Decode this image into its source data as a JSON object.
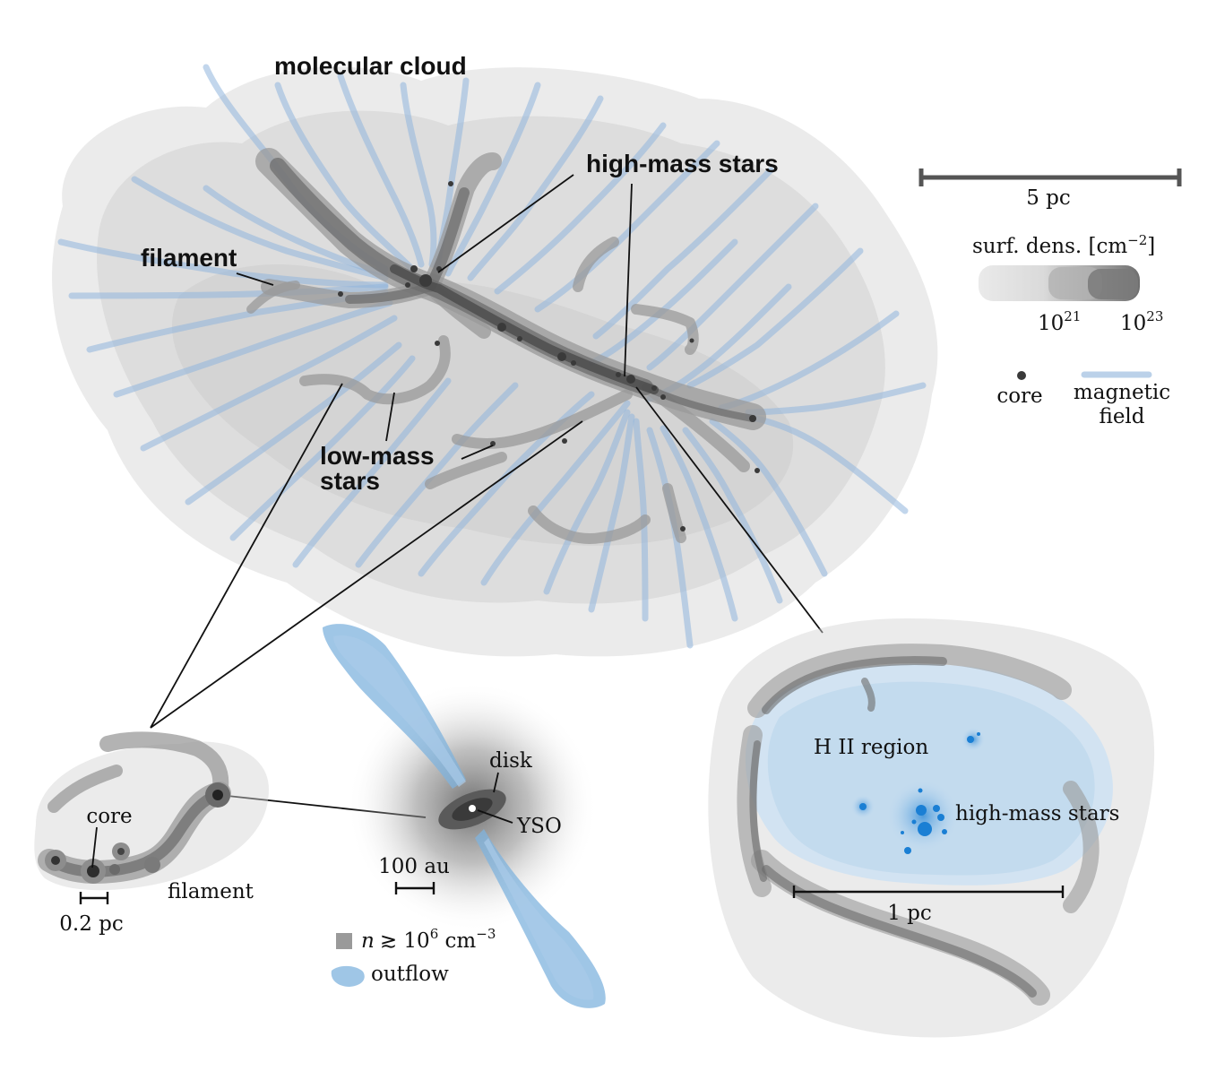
{
  "main": {
    "title": "molecular cloud",
    "labels": {
      "filament": "filament",
      "high_mass_stars": "high-mass stars",
      "low_mass_line1": "low-mass",
      "low_mass_line2": "stars"
    }
  },
  "legend": {
    "scale": "5 pc",
    "surf_dens_label": "surf. dens. [cm",
    "surf_dens_exp": "−2",
    "surf_dens_close": "]",
    "tick_low_base": "10",
    "tick_low_exp": "21",
    "tick_high_base": "10",
    "tick_high_exp": "23",
    "core": "core",
    "magnetic_line1": "magnetic",
    "magnetic_line2": "field"
  },
  "filament_zoom": {
    "core": "core",
    "filament": "filament",
    "scale": "0.2 pc"
  },
  "yso_zoom": {
    "disk": "disk",
    "yso": "YSO",
    "scale": "100 au",
    "density_n": "n",
    "density_rel": "≳ 10",
    "density_exp": "6",
    "density_unit": " cm",
    "density_unit_exp": "−3",
    "outflow": "outflow"
  },
  "hii_zoom": {
    "region": "H II region",
    "stars": "high-mass stars",
    "scale": "1 pc"
  },
  "colors": {
    "magnetic_field": "#8fb4dc",
    "outflow": "#7fb3dd",
    "high_mass_star": "#1a7fd4",
    "hii_region": "#cfe2f3"
  }
}
